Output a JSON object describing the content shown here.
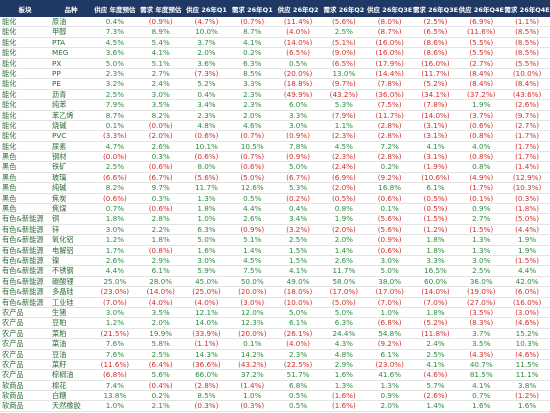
{
  "table": {
    "header": [
      "板块",
      "品种",
      "供应 年度预估",
      "需求 年度预估",
      "供应 26年Q1",
      "需求 26年Q1",
      "供应 26年Q2",
      "需求 26年Q2",
      "供应 26年Q3E",
      "需求 26年Q3E",
      "供应 26年Q4E",
      "需求 26年Q4E"
    ],
    "rows": [
      [
        "能化",
        "原油",
        "0.4%",
        "(0.9%)",
        "(4.7%)",
        "(0.7%)",
        "(11.4%)",
        "(5.6%)",
        "(8.0%)",
        "(2.5%)",
        "(6.9%)",
        "(1.1%)"
      ],
      [
        "能化",
        "甲醇",
        "7.3%",
        "8.9%",
        "10.0%",
        "8.7%",
        "(4.0%)",
        "2.5%",
        "(8.7%)",
        "(6.5%)",
        "(11.6%)",
        "(8.5%)"
      ],
      [
        "能化",
        "PTA",
        "4.5%",
        "5.4%",
        "3.7%",
        "4.1%",
        "(14.0%)",
        "(5.1%)",
        "(16.0%)",
        "(8.6%)",
        "(5.5%)",
        "(8.5%)"
      ],
      [
        "能化",
        "MEG",
        "3.6%",
        "4.1%",
        "2.0%",
        "0.2%",
        "(6.5%)",
        "(9.0%)",
        "(16.0%)",
        "(8.6%)",
        "(5.5%)",
        "(8.5%)"
      ],
      [
        "能化",
        "PX",
        "5.0%",
        "5.1%",
        "3.6%",
        "6.3%",
        "0.5%",
        "(6.5%)",
        "(17.9%)",
        "(16.0%)",
        "(2.7%)",
        "(5.5%)"
      ],
      [
        "能化",
        "PP",
        "2.3%",
        "2.7%",
        "(7.3%)",
        "8.5%",
        "(20.0%)",
        "13.0%",
        "(14.4%)",
        "(11.7%)",
        "(8.4%)",
        "(10.0%)"
      ],
      [
        "能化",
        "PE",
        "3.2%",
        "2.4%",
        "5.2%",
        "3.3%",
        "(18.8%)",
        "(9.7%)",
        "(7.8%)",
        "(5.2%)",
        "(8.4%)",
        "(8.4%)"
      ],
      [
        "能化",
        "沥青",
        "2.5%",
        "3.0%",
        "0.4%",
        "2.3%",
        "(49.9%)",
        "(43.2%)",
        "(36.0%)",
        "(34.1%)",
        "(37.2%)",
        "(43.6%)"
      ],
      [
        "能化",
        "纯苯",
        "7.9%",
        "3.5%",
        "3.4%",
        "2.3%",
        "6.0%",
        "5.3%",
        "(7.5%)",
        "(7.8%)",
        "1.9%",
        "(2.6%)"
      ],
      [
        "能化",
        "苯乙烯",
        "8.7%",
        "8.2%",
        "2.3%",
        "2.0%",
        "3.3%",
        "(7.9%)",
        "(11.7%)",
        "(14.0%)",
        "(3.7%)",
        "(9.7%)"
      ],
      [
        "能化",
        "烧碱",
        "0.1%",
        "(0.0%)",
        "4.8%",
        "4.6%",
        "3.0%",
        "1.1%",
        "(2.8%)",
        "(3.1%)",
        "(0.6%)",
        "(2.7%)"
      ],
      [
        "能化",
        "PVC",
        "(3.3%)",
        "(2.0%)",
        "(0.6%)",
        "(0.7%)",
        "(0.9%)",
        "(2.3%)",
        "(2.8%)",
        "(3.1%)",
        "(0.8%)",
        "(1.7%)"
      ],
      [
        "能化",
        "尿素",
        "4.7%",
        "2.6%",
        "10.1%",
        "10.5%",
        "7.8%",
        "4.5%",
        "7.2%",
        "4.1%",
        "4.0%",
        "(1.7%)"
      ],
      [
        "黑色",
        "钢材",
        "(0.0%)",
        "0.3%",
        "(0.6%)",
        "(0.7%)",
        "(0.9%)",
        "(2.3%)",
        "(2.8%)",
        "(3.1%)",
        "(0.8%)",
        "(1.7%)"
      ],
      [
        "黑色",
        "铁矿",
        "2.5%",
        "(0.6%)",
        "8.0%",
        "(0.6%)",
        "5.0%",
        "(2.4%)",
        "0.2%",
        "(1.9%)",
        "0.8%",
        "(1.4%)"
      ],
      [
        "黑色",
        "玻璃",
        "(6.6%)",
        "(6.7%)",
        "(5.6%)",
        "(5.0%)",
        "(6.7%)",
        "(6.9%)",
        "(9.2%)",
        "(10.6%)",
        "(4.9%)",
        "(12.9%)"
      ],
      [
        "黑色",
        "纯碱",
        "8.2%",
        "9.7%",
        "11.7%",
        "12.6%",
        "5.3%",
        "(2.0%)",
        "16.8%",
        "6.1%",
        "(1.7%)",
        "(10.3%)"
      ],
      [
        "黑色",
        "焦炭",
        "(0.6%)",
        "0.3%",
        "1.3%",
        "0.5%",
        "(0.2%)",
        "(0.5%)",
        "(0.6%)",
        "(0.5%)",
        "(0.1%)",
        "(0.3%)"
      ],
      [
        "黑色",
        "焦煤",
        "0.7%",
        "(0.6%)",
        "1.8%",
        "4.4%",
        "0.4%",
        "0.8%",
        "0.1%",
        "(0.5%)",
        "0.9%",
        "(1.8%)"
      ],
      [
        "有色&新能源",
        "铜",
        "1.8%",
        "2.8%",
        "1.0%",
        "2.6%",
        "3.4%",
        "1.9%",
        "(5.6%)",
        "(1.5%)",
        "2.7%",
        "(5.0%)"
      ],
      [
        "有色&新能源",
        "锌",
        "3.0%",
        "2.2%",
        "6.3%",
        "(0.9%)",
        "(3.2%)",
        "(2.0%)",
        "(5.6%)",
        "(1.2%)",
        "(1.5%)",
        "(4.4%)"
      ],
      [
        "有色&新能源",
        "氧化铝",
        "1.2%",
        "1.8%",
        "5.0%",
        "5.1%",
        "2.5%",
        "2.0%",
        "(0.9%)",
        "1.8%",
        "1.3%",
        "1.9%"
      ],
      [
        "有色&新能源",
        "电解铝",
        "1.7%",
        "(0.8%)",
        "1.6%",
        "1.4%",
        "1.5%",
        "1.4%",
        "(0.6%)",
        "1.8%",
        "1.3%",
        "1.9%"
      ],
      [
        "有色&新能源",
        "镍",
        "2.6%",
        "2.9%",
        "3.0%",
        "4.5%",
        "1.5%",
        "2.6%",
        "3.0%",
        "3.3%",
        "3.0%",
        "(1.5%)"
      ],
      [
        "有色&新能源",
        "不锈钢",
        "4.4%",
        "6.1%",
        "5.9%",
        "7.5%",
        "4.1%",
        "11.7%",
        "5.0%",
        "16.5%",
        "2.5%",
        "4.4%"
      ],
      [
        "有色&新能源",
        "碳酸锂",
        "25.0%",
        "28.0%",
        "45.0%",
        "50.0%",
        "49.0%",
        "58.0%",
        "38.0%",
        "60.0%",
        "36.0%",
        "42.0%"
      ],
      [
        "有色&新能源",
        "多晶硅",
        "(23.0%)",
        "(14.0%)",
        "(25.0%)",
        "(20.0%)",
        "(18.0%)",
        "(17.0%)",
        "(17.0%)",
        "(14.0%)",
        "(19.0%)",
        "(6.0%)"
      ],
      [
        "有色&新能源",
        "工业硅",
        "(7.0%)",
        "(4.0%)",
        "(4.0%)",
        "(3.0%)",
        "(10.0%)",
        "(5.0%)",
        "(7.0%)",
        "(7.0%)",
        "(27.0%)",
        "(16.0%)"
      ],
      [
        "农产品",
        "生猪",
        "3.0%",
        "3.5%",
        "12.1%",
        "12.0%",
        "5.0%",
        "5.0%",
        "1.0%",
        "1.8%",
        "(3.5%)",
        "(3.0%)"
      ],
      [
        "农产品",
        "豆粕",
        "1.2%",
        "2.0%",
        "14.0%",
        "12.3%",
        "6.1%",
        "6.3%",
        "(6.8%)",
        "(5.2%)",
        "(8.3%)",
        "(4.6%)"
      ],
      [
        "农产品",
        "菜粕",
        "(21.5%)",
        "19.9%",
        "(33.9%)",
        "(20.0%)",
        "(26.1%)",
        "24.4%",
        "54.8%",
        "(11.8%)",
        "3.7%",
        "15.2%"
      ],
      [
        "农产品",
        "菜油",
        "7.6%",
        "5.8%",
        "(1.1%)",
        "0.1%",
        "(4.0%)",
        "4.3%",
        "(9.2%)",
        "2.4%",
        "3.5%",
        "10.3%"
      ],
      [
        "农产品",
        "豆油",
        "7.6%",
        "2.5%",
        "14.3%",
        "14.2%",
        "2.3%",
        "4.8%",
        "6.1%",
        "2.5%",
        "(4.3%)",
        "(4.6%)"
      ],
      [
        "农产品",
        "菜籽",
        "(11.6%)",
        "(6.4%)",
        "(36.6%)",
        "(43.2%)",
        "(22.5%)",
        "2.9%",
        "(23.0%)",
        "4.1%",
        "40.7%",
        "11.5%"
      ],
      [
        "农产品",
        "棕榈油",
        "(6.8%)",
        "5.6%",
        "66.0%",
        "37.2%",
        "51.7%",
        "1.6%",
        "41.6%",
        "(4.6%)",
        "81.5%",
        "11.1%"
      ],
      [
        "软商品",
        "棉花",
        "7.4%",
        "(0.4%)",
        "(2.8%)",
        "(1.4%)",
        "6.8%",
        "1.3%",
        "1.3%",
        "5.7%",
        "4.1%",
        "3.8%"
      ],
      [
        "软商品",
        "白糖",
        "13.8%",
        "0.2%",
        "8.5%",
        "1.0%",
        "0.5%",
        "(1.6%)",
        "0.9%",
        "(2.6%)",
        "0.7%",
        "(1.2%)"
      ],
      [
        "软商品",
        "天然橡胶",
        "1.0%",
        "2.1%",
        "(0.3%)",
        "(0.3%)",
        "0.5%",
        "(1.6%)",
        "2.0%",
        "1.4%",
        "1.6%",
        "1.6%"
      ]
    ]
  }
}
